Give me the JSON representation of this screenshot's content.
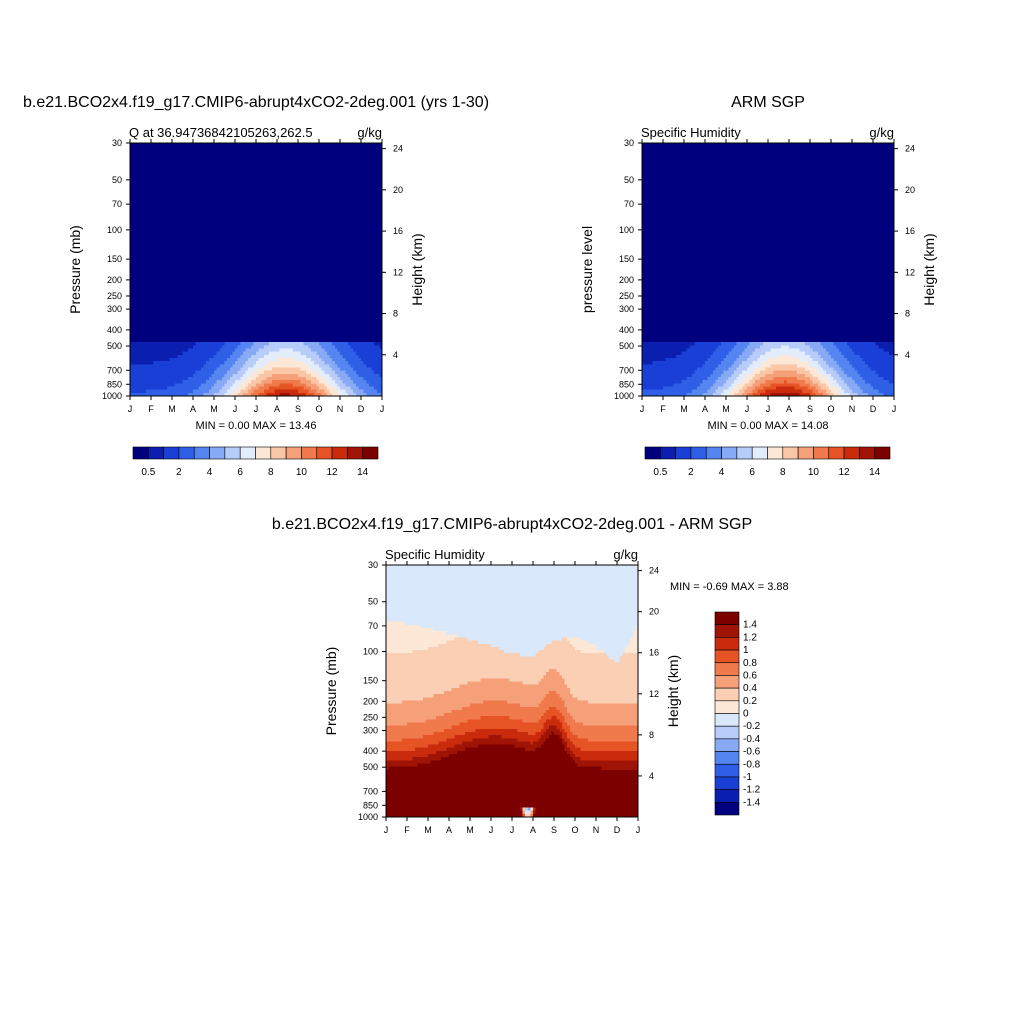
{
  "chart_data": [
    {
      "type": "heatmap",
      "title": "b.e21.BCO2x4.f19_g17.CMIP6-abrupt4xCO2-2deg.001 (yrs 1-30)",
      "left_label": "Q at 36.94736842105263,262.5",
      "right_label": "g/kg",
      "ylabel": "Pressure (mb)",
      "ylabel_right": "Height (km)",
      "x_ticks": [
        "J",
        "F",
        "M",
        "A",
        "M",
        "J",
        "J",
        "A",
        "S",
        "O",
        "N",
        "D",
        "J"
      ],
      "y_ticks": [
        "30",
        "50",
        "70",
        "100",
        "150",
        "200",
        "250",
        "300",
        "400",
        "500",
        "700",
        "850",
        "1000"
      ],
      "y_ticks_right": [
        "24",
        "20",
        "16",
        "12",
        "8",
        "4"
      ],
      "stats": "MIN =   0.00 MAX =  13.46",
      "min": 0.0,
      "max": 13.46,
      "peak_month": 7.4,
      "levels": [
        0.5,
        1,
        2,
        3,
        4,
        5,
        6,
        7,
        8,
        9,
        10,
        11,
        12,
        13,
        14
      ],
      "level_labels": [
        "0.5",
        "2",
        "4",
        "6",
        "8",
        "10",
        "12",
        "14"
      ],
      "colors": [
        "#00007f",
        "#0a1fb0",
        "#1a3fd6",
        "#2e5fe6",
        "#5585f0",
        "#88aaf5",
        "#b7ccf8",
        "#e2ecfa",
        "#fde8d8",
        "#fac6a6",
        "#f6a07a",
        "#f07a4c",
        "#e65324",
        "#c92b0c",
        "#a01405",
        "#7d0000"
      ]
    },
    {
      "type": "heatmap",
      "title": "ARM SGP",
      "left_label": "Specific Humidity",
      "right_label": "g/kg",
      "ylabel": "pressure level",
      "ylabel_right": "Height (km)",
      "x_ticks": [
        "J",
        "F",
        "M",
        "A",
        "M",
        "J",
        "J",
        "A",
        "S",
        "O",
        "N",
        "D",
        "J"
      ],
      "y_ticks": [
        "30",
        "50",
        "70",
        "100",
        "150",
        "200",
        "250",
        "300",
        "400",
        "500",
        "700",
        "850",
        "1000"
      ],
      "y_ticks_right": [
        "24",
        "20",
        "16",
        "12",
        "8",
        "4"
      ],
      "stats": "MIN =   0.00 MAX =  14.08",
      "min": 0.0,
      "max": 14.08,
      "peak_month": 6.8,
      "levels": [
        0.5,
        1,
        2,
        3,
        4,
        5,
        6,
        7,
        8,
        9,
        10,
        11,
        12,
        13,
        14
      ],
      "level_labels": [
        "0.5",
        "2",
        "4",
        "6",
        "8",
        "10",
        "12",
        "14"
      ],
      "colors": [
        "#00007f",
        "#0a1fb0",
        "#1a3fd6",
        "#2e5fe6",
        "#5585f0",
        "#88aaf5",
        "#b7ccf8",
        "#e2ecfa",
        "#fde8d8",
        "#fac6a6",
        "#f6a07a",
        "#f07a4c",
        "#e65324",
        "#c92b0c",
        "#a01405",
        "#7d0000"
      ]
    },
    {
      "type": "heatmap",
      "title": "b.e21.BCO2x4.f19_g17.CMIP6-abrupt4xCO2-2deg.001 - ARM SGP",
      "left_label": "Specific Humidity",
      "right_label": "g/kg",
      "ylabel": "Pressure (mb)",
      "ylabel_right": "Height (km)",
      "x_ticks": [
        "J",
        "F",
        "M",
        "A",
        "M",
        "J",
        "J",
        "A",
        "S",
        "O",
        "N",
        "D",
        "J"
      ],
      "y_ticks": [
        "30",
        "50",
        "70",
        "100",
        "150",
        "200",
        "250",
        "300",
        "400",
        "500",
        "700",
        "850",
        "1000"
      ],
      "y_ticks_right": [
        "24",
        "20",
        "16",
        "12",
        "8",
        "4"
      ],
      "stats": "MIN =  -0.69 MAX =   3.88",
      "min": -0.69,
      "max": 3.88,
      "levels": [
        -1.4,
        -1.2,
        -1,
        -0.8,
        -0.6,
        -0.4,
        -0.2,
        0,
        0.2,
        0.4,
        0.6,
        0.8,
        1,
        1.2,
        1.4
      ],
      "level_labels": [
        "1.4",
        "1.2",
        "1",
        "0.8",
        "0.6",
        "0.4",
        "0.2",
        "0",
        "-0.2",
        "-0.4",
        "-0.6",
        "-0.8",
        "-1",
        "-1.2",
        "-1.4"
      ],
      "colors": [
        "#00007f",
        "#0a1fb0",
        "#1a3fd6",
        "#2e5fe6",
        "#5585f0",
        "#88aaf5",
        "#b7ccf8",
        "#d9e8fb",
        "#fde8d8",
        "#fbcfb4",
        "#f6a07a",
        "#f07a4c",
        "#e65324",
        "#c92b0c",
        "#a01405",
        "#7d0000"
      ],
      "boundary_0_2_pressure": [
        65,
        68,
        72,
        78,
        85,
        92,
        104,
        106,
        85,
        82,
        92,
        118,
        65
      ]
    }
  ]
}
